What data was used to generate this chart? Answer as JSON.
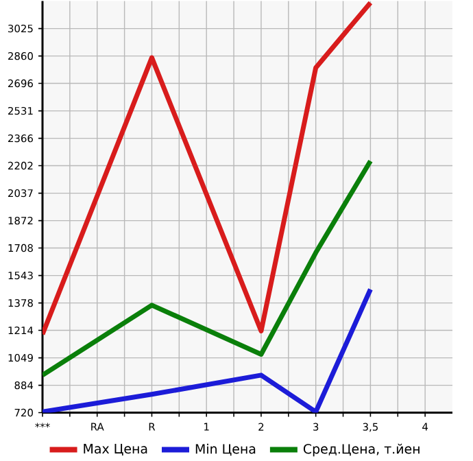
{
  "chart_data": {
    "type": "line",
    "categories": [
      "***",
      "RA",
      "R",
      "1",
      "2",
      "3",
      "3,5",
      "4"
    ],
    "series": [
      {
        "name": "Max Цена",
        "color": "#d81c1c",
        "values": [
          1190,
          null,
          2850,
          null,
          1210,
          2790,
          3180,
          null
        ]
      },
      {
        "name": "Min Цена",
        "color": "#1c1cd8",
        "values": [
          725,
          null,
          830,
          null,
          945,
          725,
          1460,
          null
        ]
      },
      {
        "name": "Сред.Цена, т.йен",
        "color": "#0a7f0a",
        "values": [
          945,
          null,
          1365,
          null,
          1070,
          1680,
          2230,
          null
        ]
      }
    ],
    "ylim": [
      720,
      3190
    ],
    "yticks": [
      720,
      884,
      1049,
      1214,
      1378,
      1543,
      1708,
      1872,
      2037,
      2202,
      2366,
      2531,
      2696,
      2860,
      3025
    ],
    "grid": true,
    "legend": "bottom",
    "marker": "none",
    "line_style": "solid"
  }
}
